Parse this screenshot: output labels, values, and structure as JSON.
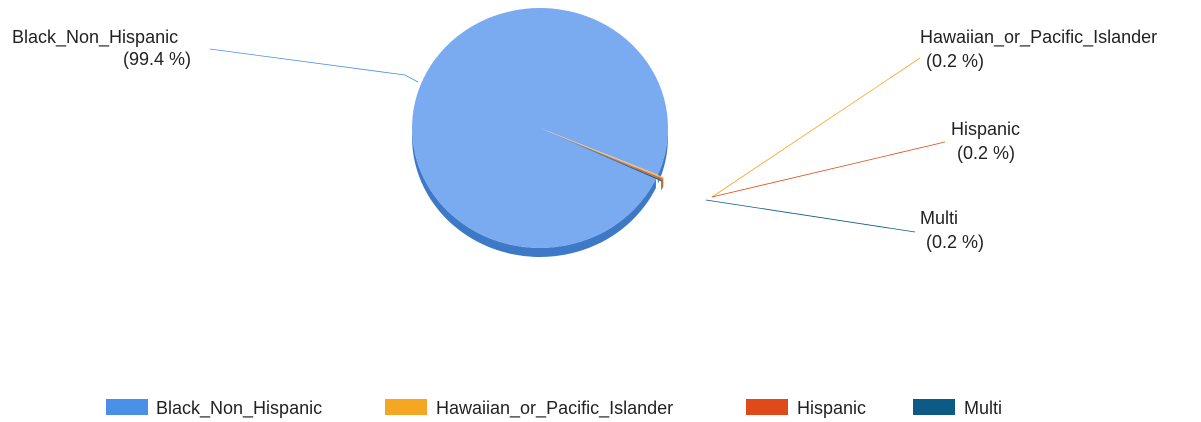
{
  "chart_data": {
    "type": "pie",
    "style": "3d",
    "slices": [
      {
        "name": "Black_Non_Hispanic",
        "pct": 99.4,
        "pct_label": "(99.4 %)",
        "color": "#4a90e8",
        "top_color": "#7aabf0",
        "side_color": "#3d79c6"
      },
      {
        "name": "Hawaiian_or_Pacific_Islander",
        "pct": 0.2,
        "pct_label": "(0.2 %)",
        "color": "#f5a623",
        "top_color": "#f8b84a",
        "side_color": "#d88b12"
      },
      {
        "name": "Hispanic",
        "pct": 0.2,
        "pct_label": "(0.2 %)",
        "color": "#e04a1a",
        "top_color": "#e8602f",
        "side_color": "#b73a12"
      },
      {
        "name": "Multi",
        "pct": 0.2,
        "pct_label": "(0.2 %)",
        "color": "#0d5a86",
        "top_color": "#176c9c",
        "side_color": "#0a4566"
      }
    ],
    "legend_position": "bottom",
    "legend": [
      "Black_Non_Hispanic",
      "Hawaiian_or_Pacific_Islander",
      "Hispanic",
      "Multi"
    ]
  }
}
